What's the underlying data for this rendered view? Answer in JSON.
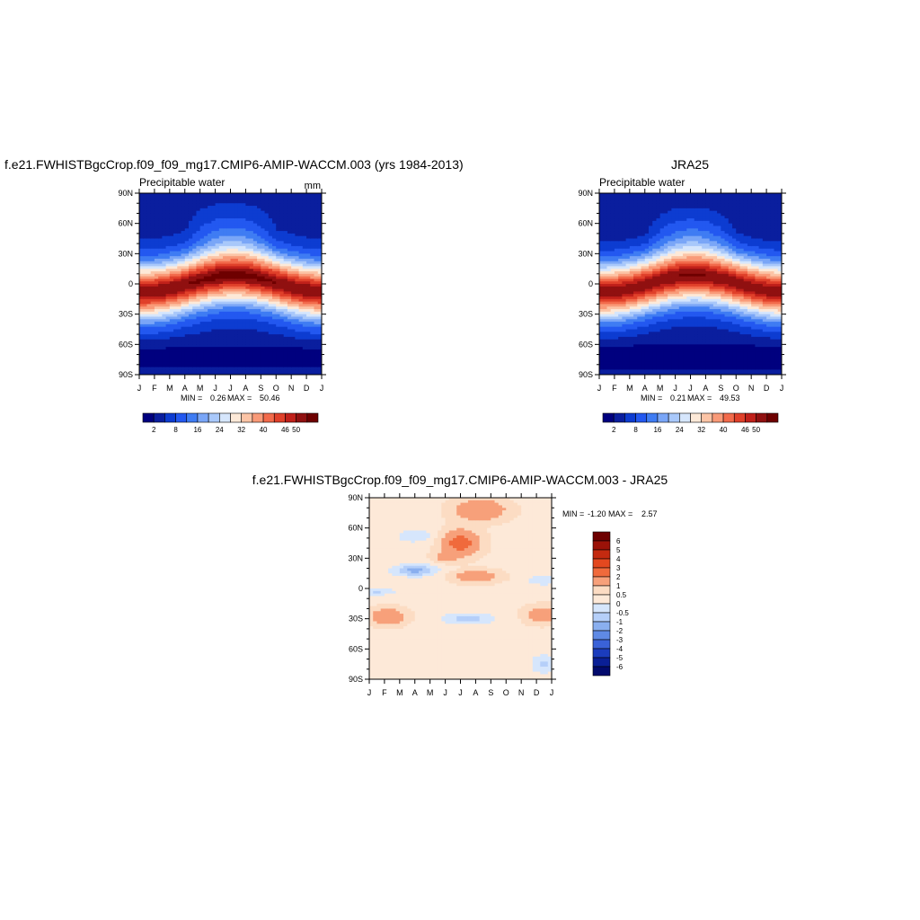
{
  "chart_data": [
    {
      "type": "heatmap",
      "panel": "model",
      "title": "f.e21.FWHISTBgcCrop.f09_f09_mg17.CMIP6-AMIP-WACCM.003 (yrs 1984-2013)",
      "subtitle_left": "Precipitable water",
      "subtitle_right": "mm",
      "x_ticks": [
        "J",
        "F",
        "M",
        "A",
        "M",
        "J",
        "J",
        "A",
        "S",
        "O",
        "N",
        "D",
        "J"
      ],
      "y_ticks": [
        "90S",
        "60S",
        "30S",
        "0",
        "30N",
        "60N",
        "90N"
      ],
      "ylim": [
        -90,
        90
      ],
      "min_label": "MIN =",
      "min_value": "0.26",
      "max_label": "MAX =",
      "max_value": "50.46",
      "value_range": [
        0.26,
        50.46
      ],
      "colorbar_labels": [
        "2",
        "8",
        "16",
        "24",
        "32",
        "40",
        "46",
        "50"
      ],
      "colorbar_orientation": "horizontal"
    },
    {
      "type": "heatmap",
      "panel": "obs",
      "title": "JRA25",
      "subtitle_left": "Precipitable water",
      "subtitle_right": "",
      "x_ticks": [
        "J",
        "F",
        "M",
        "A",
        "M",
        "J",
        "J",
        "A",
        "S",
        "O",
        "N",
        "D",
        "J"
      ],
      "y_ticks": [
        "90S",
        "60S",
        "30S",
        "0",
        "30N",
        "60N",
        "90N"
      ],
      "ylim": [
        -90,
        90
      ],
      "min_label": "MIN =",
      "min_value": "0.21",
      "max_label": "MAX =",
      "max_value": "49.53",
      "value_range": [
        0.21,
        49.53
      ],
      "colorbar_labels": [
        "2",
        "8",
        "16",
        "24",
        "32",
        "40",
        "46",
        "50"
      ],
      "colorbar_orientation": "horizontal"
    },
    {
      "type": "heatmap",
      "panel": "diff",
      "title": "f.e21.FWHISTBgcCrop.f09_f09_mg17.CMIP6-AMIP-WACCM.003 - JRA25",
      "x_ticks": [
        "J",
        "F",
        "M",
        "A",
        "M",
        "J",
        "J",
        "A",
        "S",
        "O",
        "N",
        "D",
        "J"
      ],
      "y_ticks": [
        "90S",
        "60S",
        "30S",
        "0",
        "30N",
        "60N",
        "90N"
      ],
      "ylim": [
        -90,
        90
      ],
      "min_label": "MIN =",
      "min_value": "-1.20",
      "max_label": "MAX =",
      "max_value": "2.57",
      "value_range": [
        -1.2,
        2.57
      ],
      "colorbar_labels": [
        "6",
        "5",
        "4",
        "3",
        "2",
        "1",
        "0.5",
        "0",
        "-0.5",
        "-1",
        "-2",
        "-3",
        "-4",
        "-5",
        "-6"
      ],
      "colorbar_orientation": "vertical"
    }
  ],
  "colors": {
    "full_scale": [
      "#00007f",
      "#0a1e9e",
      "#0d3cd1",
      "#2358f0",
      "#3f7cf3",
      "#7aa6f7",
      "#a9c8fa",
      "#d6e6fc",
      "#fde9d8",
      "#fcc4a6",
      "#f99a78",
      "#f26a4b",
      "#e0402a",
      "#c0201a",
      "#901010",
      "#6e0000"
    ],
    "diff_scale": [
      "#6e0000",
      "#9b1208",
      "#c42a10",
      "#e3481f",
      "#f06a3c",
      "#f7a07a",
      "#fcdcc3",
      "#fde9d8",
      "#d6e6fc",
      "#b5cff9",
      "#8aafef",
      "#5f8ae5",
      "#3a62d8",
      "#1b3cbd",
      "#0a1f96",
      "#020a6d"
    ]
  }
}
